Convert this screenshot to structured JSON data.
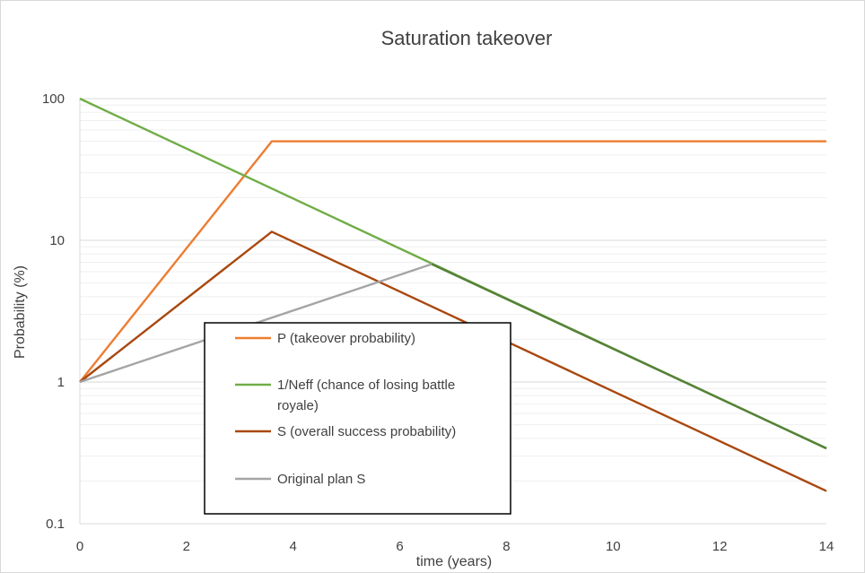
{
  "chart_data": {
    "type": "line",
    "title": "Saturation takeover",
    "xlabel": "time (years)",
    "ylabel": "Probability (%)",
    "xlim": [
      0,
      14
    ],
    "ylim": [
      0.1,
      100
    ],
    "yscale": "log",
    "x_ticks": [
      "0",
      "2",
      "4",
      "6",
      "8",
      "10",
      "12",
      "14"
    ],
    "y_ticks": [
      "0.1",
      "1",
      "10",
      "100"
    ],
    "grid": true,
    "legend_position": "center",
    "series": [
      {
        "name": "P (takeover probability)",
        "color": "#ed7d31",
        "points": [
          [
            0,
            1
          ],
          [
            3.6,
            50
          ],
          [
            14,
            50
          ]
        ]
      },
      {
        "name": "1/Neff (chance of losing battle royale)",
        "color": "#70ad47",
        "points": [
          [
            0,
            100
          ],
          [
            14,
            0.34
          ]
        ]
      },
      {
        "name": "S (overall success probability)",
        "color": "#a9480f",
        "points": [
          [
            0,
            1
          ],
          [
            3.6,
            11.5
          ],
          [
            14,
            0.17
          ]
        ]
      },
      {
        "name": "Original plan S",
        "color": "#a5a5a5",
        "points": [
          [
            0,
            1
          ],
          [
            6.6,
            6.8
          ],
          [
            14,
            0.34
          ]
        ]
      }
    ],
    "legend_lines": [
      [
        "P (takeover probability)"
      ],
      [
        "1/Neff (chance of losing battle",
        "royale)"
      ],
      [
        "S (overall success probability)"
      ],
      [
        "Original plan S"
      ]
    ]
  }
}
